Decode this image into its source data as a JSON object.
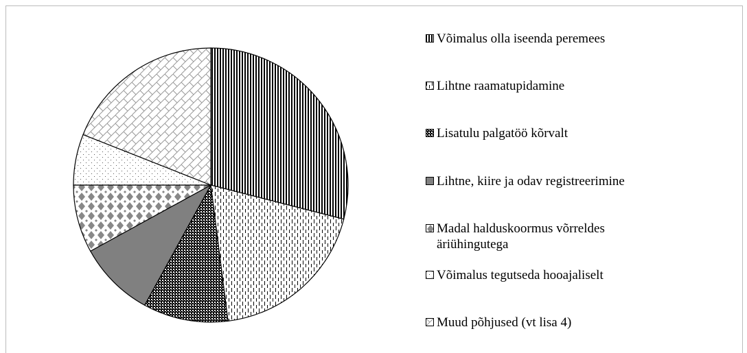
{
  "chart_data": {
    "type": "pie",
    "categories": [
      "Võimalus olla iseenda peremees",
      "Lihtne raamatupidamine",
      "Lisatulu palgatöö kõrvalt",
      "Lihtne, kiire ja odav registreerimine",
      "Madal halduskoormus võrreldes äriühingutega",
      "Võimalus tegutseda hooajaliselt",
      "Muud põhjused (vt lisa 4)"
    ],
    "values": [
      29,
      19,
      10,
      9,
      8,
      6,
      19
    ],
    "legend": "right"
  }
}
